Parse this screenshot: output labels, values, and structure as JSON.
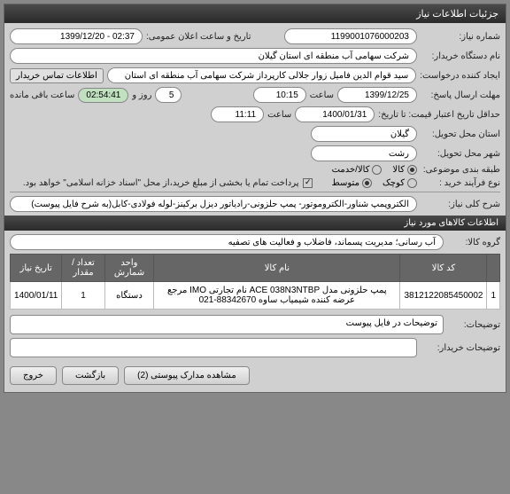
{
  "titlebar": "جزئیات اطلاعات نیاز",
  "labels": {
    "shomare_niaz": "شماره نیاز:",
    "tarikh_elan": "تاریخ و ساعت اعلان عمومی:",
    "dastgah": "نام دستگاه خریدار:",
    "ijad_konande": "ایجاد کننده درخواست:",
    "etelaat_tamas": "اطلاعات تماس خریدار",
    "mohlat_pasokh": "مهلت ارسال پاسخ:",
    "saat": "ساعت",
    "rooz": "روز و",
    "baghi": "ساعت باقی مانده",
    "etbar_gheymat": "حداقل تاریخ اعتبار قیمت: تا تاریخ:",
    "ostan": "استان محل تحویل:",
    "shahr": "شهر محل تحویل:",
    "taghsim": "طبقه بندی موضوعی:",
    "farayand": "نوع فرآیند خرید :",
    "pardakht_note": "پرداخت تمام یا بخشی از مبلغ خرید،از محل \"اسناد خزانه اسلامی\" خواهد بود.",
    "sharh_koli": "شرح کلی نیاز:",
    "section_kala": "اطلاعات کالاهای مورد نیاز",
    "goroh_kala": "گروه کالا:",
    "tozihaat": "توضیحات:",
    "tozihaat_kharidar": "توضیحات خریدار:"
  },
  "radios": {
    "kala": "کالا",
    "khadamat": "کالا/خدمت",
    "kuchak": "کوچک",
    "motevaset": "متوسط"
  },
  "values": {
    "shomare_niaz": "1199001076000203",
    "tarikh_elan": "02:37 - 1399/12/20",
    "dastgah": "شرکت سهامی آب منطقه ای استان گیلان",
    "ijad_konande": "سید قوام الدین فامیل زوار جلالی کارپرداز شرکت سهامی آب منطقه ای استان",
    "mohlat_date": "1399/12/25",
    "mohlat_time": "10:15",
    "countdown_days": "5",
    "countdown_time": "02:54:41",
    "etbar_date": "1400/01/31",
    "etbar_time": "11:11",
    "ostan": "گیلان",
    "shahr": "رشت",
    "sharh_koli": "الکتروپمپ شناور-الکتروموتور- پمپ حلزونی-رادیاتور دیزل برکینز-لوله فولادی-کابل(به شرح فایل پیوست)",
    "goroh_kala": "آب رسانی؛ مدیریت پسماند، فاضلاب و فعالیت های تصفیه",
    "tozihaat": "توضیحات در فایل پیوست"
  },
  "table": {
    "headers": [
      "",
      "کد کالا",
      "نام کالا",
      "واحد شمارش",
      "تعداد / مقدار",
      "تاریخ نیاز"
    ],
    "rows": [
      [
        "1",
        "3812122085450002",
        "پمپ حلزونی مدل ACE 038N3NTBP نام تجارتی IMO مرجع عرضه کننده شیمیاب ساوه 88342670-021",
        "دستگاه",
        "1",
        "1400/01/11"
      ]
    ]
  },
  "buttons": {
    "moshahede": "مشاهده مدارک پیوستی (2)",
    "bazgasht": "بازگشت",
    "khorooj": "خروج"
  }
}
